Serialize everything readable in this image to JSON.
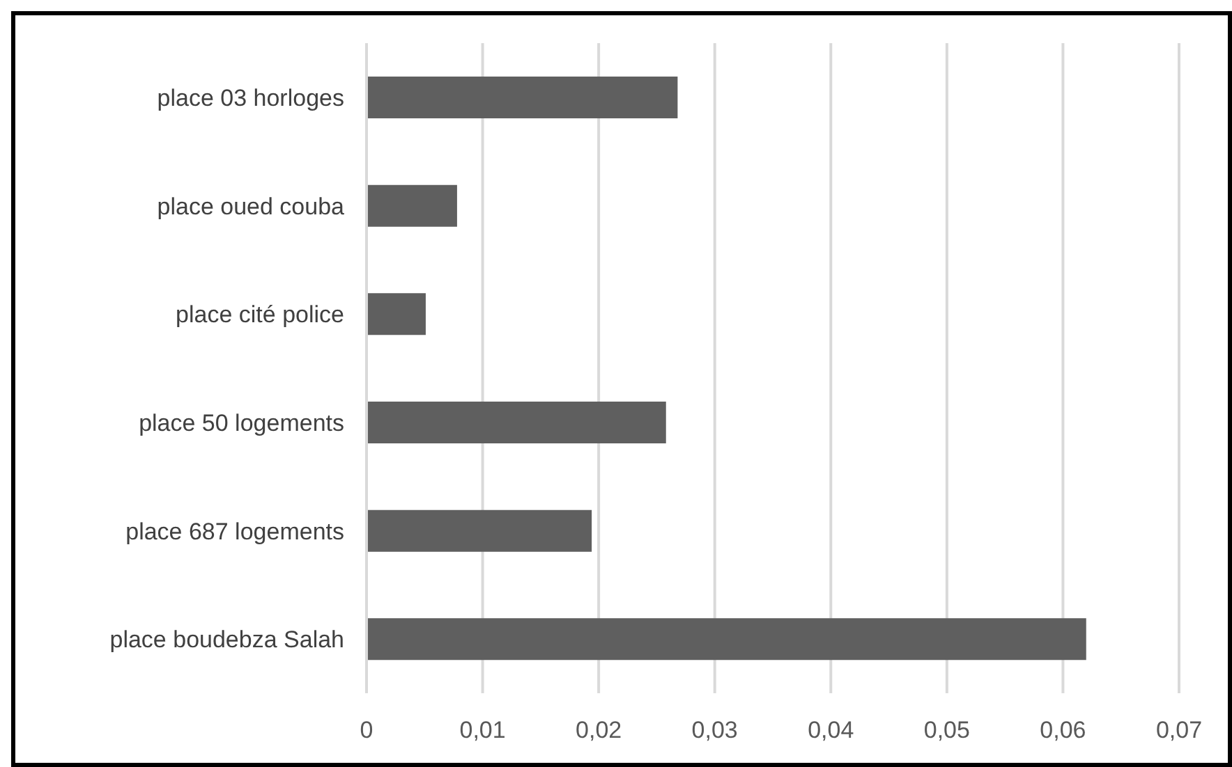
{
  "chart_data": {
    "type": "bar",
    "orientation": "horizontal",
    "categories": [
      "place 03 horloges",
      "place oued couba",
      "place cité police",
      "place 50 logements",
      "place 687 logements",
      "place boudebza Salah"
    ],
    "values": [
      0.0268,
      0.0078,
      0.0051,
      0.0258,
      0.0194,
      0.062
    ],
    "color": "#5f5f5f",
    "xlim": [
      0,
      0.07
    ],
    "xticks": [
      0,
      {
        "value": 0.01,
        "label": "0,01"
      },
      {
        "value": 0.02,
        "label": "0,02"
      },
      {
        "value": 0.03,
        "label": "0,03"
      },
      {
        "value": 0.04,
        "label": "0,04"
      },
      {
        "value": 0.05,
        "label": "0,05"
      },
      {
        "value": 0.06,
        "label": "0,06"
      },
      {
        "value": 0.07,
        "label": "0,07"
      }
    ],
    "grid": "x",
    "legend": false
  }
}
